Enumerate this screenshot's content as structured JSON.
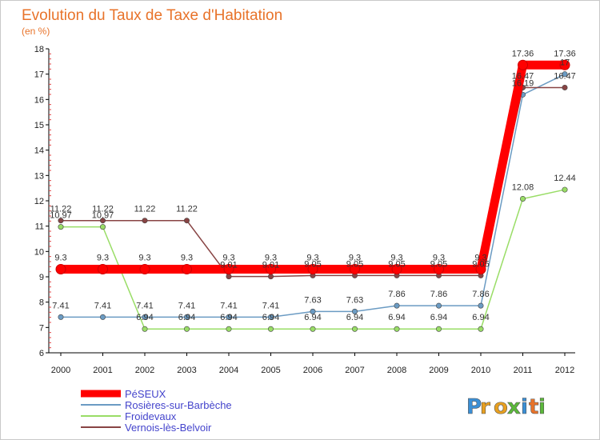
{
  "chart_data": {
    "type": "line",
    "title": "Evolution du Taux de Taxe d'Habitation",
    "subtitle": "(en %)",
    "xlabel": "",
    "ylabel": "",
    "x": [
      "2000",
      "2001",
      "2002",
      "2003",
      "2004",
      "2005",
      "2006",
      "2007",
      "2008",
      "2009",
      "2010",
      "2011",
      "2012"
    ],
    "ylim": [
      6,
      18
    ],
    "yticks": [
      6,
      7,
      8,
      9,
      10,
      11,
      12,
      13,
      14,
      15,
      16,
      17,
      18
    ],
    "grid": false,
    "legend_position": "bottom-left",
    "series": [
      {
        "name": "PéSEUX",
        "color": "#ff0000",
        "values": [
          9.3,
          9.3,
          9.3,
          9.3,
          9.3,
          9.3,
          9.3,
          9.3,
          9.3,
          9.3,
          9.3,
          17.36,
          17.36
        ],
        "labels": [
          "9.3",
          "9.3",
          "9.3",
          "9.3",
          "9.3",
          "9.3",
          "9.3",
          "9.3",
          "9.3",
          "9.3",
          "9.3",
          "17.36",
          "17.36"
        ]
      },
      {
        "name": "Rosières-sur-Barbèche",
        "color": "#6b9bc3",
        "values": [
          7.41,
          7.41,
          7.41,
          7.41,
          7.41,
          7.41,
          7.63,
          7.63,
          7.86,
          7.86,
          7.86,
          16.19,
          17
        ],
        "labels": [
          "7.41",
          "7.41",
          "7.41",
          "7.41",
          "7.41",
          "7.41",
          "7.63",
          "7.63",
          "7.86",
          "7.86",
          "7.86",
          "16.19",
          "17"
        ]
      },
      {
        "name": "Froidevaux",
        "color": "#99dd66",
        "values": [
          10.97,
          10.97,
          6.94,
          6.94,
          6.94,
          6.94,
          6.94,
          6.94,
          6.94,
          6.94,
          6.94,
          12.08,
          12.44
        ],
        "labels": [
          "10.97",
          "10.97",
          "6.94",
          "6.94",
          "6.94",
          "6.94",
          "6.94",
          "6.94",
          "6.94",
          "6.94",
          "6.94",
          "12.08",
          "12.44"
        ]
      },
      {
        "name": "Vernois-lès-Belvoir",
        "color": "#884444",
        "values": [
          11.22,
          11.22,
          11.22,
          11.22,
          9.01,
          9.01,
          9.05,
          9.05,
          9.05,
          9.05,
          9.05,
          16.47,
          16.47
        ],
        "labels": [
          "11.22",
          "11.22",
          "11.22",
          "11.22",
          "9.01",
          "9.01",
          "9.05",
          "9.05",
          "9.05",
          "9.05",
          "9.05",
          "16.47",
          "16.47"
        ]
      }
    ]
  },
  "logo": {
    "text": "Proxiti",
    "letters": [
      "P",
      "r",
      "o",
      "x",
      "i",
      "t",
      "i"
    ],
    "colors": [
      "#3a8fd6",
      "#e8a020",
      "#e8a020",
      "#5bb83a",
      "#3a8fd6",
      "#e8732a",
      "#5bb83a"
    ]
  }
}
